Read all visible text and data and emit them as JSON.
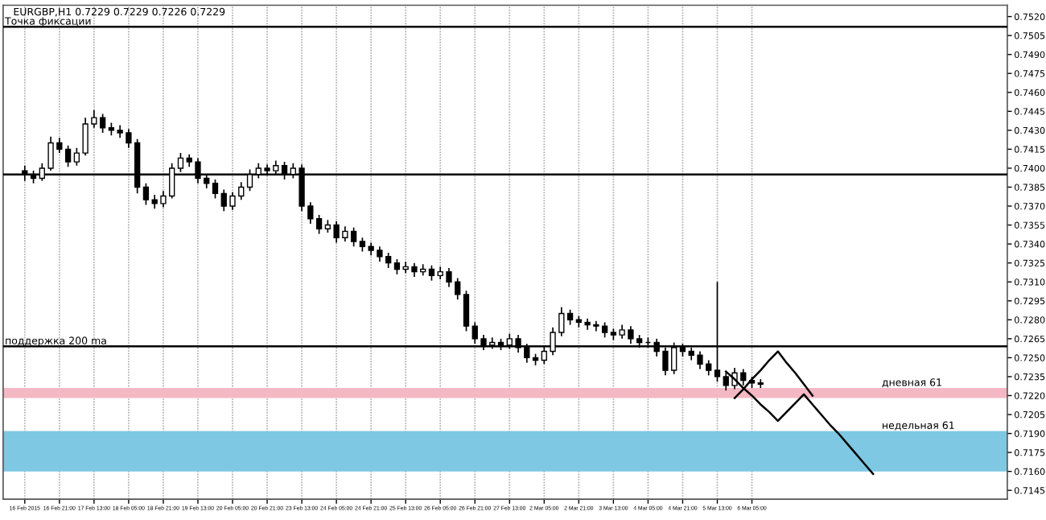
{
  "chart_data": {
    "type": "candlestick",
    "title": "EURGBP,H1 0.7229 0.7229 0.7226 0.7229",
    "categories": [
      "16 Feb 2015",
      null,
      null,
      null,
      "16 Feb 21:00",
      null,
      null,
      null,
      "17 Feb 13:00",
      null,
      null,
      null,
      "18 Feb 05:00",
      null,
      null,
      null,
      "18 Feb 21:00",
      null,
      null,
      null,
      "19 Feb 13:00",
      null,
      null,
      null,
      "20 Feb 05:00",
      null,
      null,
      null,
      "20 Feb 21:00",
      null,
      null,
      null,
      "23 Feb 13:00",
      null,
      null,
      null,
      "24 Feb 05:00",
      null,
      null,
      null,
      "24 Feb 21:00",
      null,
      null,
      null,
      "25 Feb 13:00",
      null,
      null,
      null,
      "26 Feb 05:00",
      null,
      null,
      null,
      "26 Feb 21:00",
      null,
      null,
      null,
      "27 Feb 13:00",
      null,
      null,
      null,
      "2 Mar 05:00",
      null,
      null,
      null,
      "2 Mar 21:00",
      null,
      null,
      null,
      "3 Mar 13:00",
      null,
      null,
      null,
      "4 Mar 05:00",
      null,
      null,
      null,
      "4 Mar 21:00",
      null,
      null,
      null,
      "5 Mar 13:00",
      null,
      null,
      null,
      "6 Mar 05:00",
      null,
      null,
      null,
      null,
      null,
      null,
      null,
      null,
      null,
      null,
      null,
      null,
      null,
      null,
      null,
      null,
      null,
      null,
      null,
      null,
      null,
      null,
      null,
      null,
      null,
      null,
      null,
      null,
      null
    ],
    "ohlc": [
      [
        0.7398,
        0.7402,
        0.739,
        0.7395
      ],
      [
        0.7395,
        0.7398,
        0.7388,
        0.7392
      ],
      [
        0.7392,
        0.7404,
        0.739,
        0.74
      ],
      [
        0.74,
        0.7425,
        0.7398,
        0.742
      ],
      [
        0.742,
        0.7424,
        0.7412,
        0.7415
      ],
      [
        0.7415,
        0.7418,
        0.7401,
        0.7405
      ],
      [
        0.7405,
        0.7416,
        0.7402,
        0.7412
      ],
      [
        0.7412,
        0.744,
        0.741,
        0.7435
      ],
      [
        0.7435,
        0.7446,
        0.7432,
        0.744
      ],
      [
        0.744,
        0.7443,
        0.7428,
        0.7432
      ],
      [
        0.7432,
        0.7436,
        0.7426,
        0.743
      ],
      [
        0.743,
        0.7434,
        0.7424,
        0.7428
      ],
      [
        0.7428,
        0.7431,
        0.7416,
        0.742
      ],
      [
        0.742,
        0.7423,
        0.738,
        0.7385
      ],
      [
        0.7385,
        0.7388,
        0.7371,
        0.7375
      ],
      [
        0.7375,
        0.7379,
        0.7368,
        0.7372
      ],
      [
        0.7372,
        0.7382,
        0.7369,
        0.7378
      ],
      [
        0.7378,
        0.7404,
        0.7376,
        0.74
      ],
      [
        0.74,
        0.7412,
        0.7397,
        0.7408
      ],
      [
        0.7408,
        0.7411,
        0.7401,
        0.7405
      ],
      [
        0.7405,
        0.7408,
        0.7388,
        0.7392
      ],
      [
        0.7392,
        0.7395,
        0.7384,
        0.7388
      ],
      [
        0.7388,
        0.7391,
        0.7376,
        0.738
      ],
      [
        0.738,
        0.7383,
        0.7366,
        0.737
      ],
      [
        0.737,
        0.7381,
        0.7367,
        0.7378
      ],
      [
        0.7378,
        0.7389,
        0.7375,
        0.7385
      ],
      [
        0.7385,
        0.7399,
        0.7382,
        0.7395
      ],
      [
        0.7395,
        0.7404,
        0.7392,
        0.74
      ],
      [
        0.74,
        0.7403,
        0.7394,
        0.7398
      ],
      [
        0.7398,
        0.7406,
        0.7395,
        0.7402
      ],
      [
        0.7402,
        0.7405,
        0.7391,
        0.7395
      ],
      [
        0.7395,
        0.7404,
        0.7392,
        0.74
      ],
      [
        0.74,
        0.7403,
        0.7366,
        0.737
      ],
      [
        0.737,
        0.7373,
        0.7356,
        0.736
      ],
      [
        0.736,
        0.7363,
        0.7348,
        0.7352
      ],
      [
        0.7352,
        0.7359,
        0.7349,
        0.7355
      ],
      [
        0.7355,
        0.7358,
        0.7341,
        0.7345
      ],
      [
        0.7345,
        0.7354,
        0.7342,
        0.735
      ],
      [
        0.735,
        0.7353,
        0.7338,
        0.7342
      ],
      [
        0.7342,
        0.7345,
        0.7334,
        0.7338
      ],
      [
        0.7338,
        0.7341,
        0.7331,
        0.7335
      ],
      [
        0.7335,
        0.7338,
        0.7326,
        0.733
      ],
      [
        0.733,
        0.7333,
        0.7321,
        0.7325
      ],
      [
        0.7325,
        0.7328,
        0.7316,
        0.732
      ],
      [
        0.732,
        0.7326,
        0.7317,
        0.7322
      ],
      [
        0.7322,
        0.7325,
        0.7314,
        0.7318
      ],
      [
        0.7318,
        0.7324,
        0.7315,
        0.732
      ],
      [
        0.732,
        0.7323,
        0.7311,
        0.7315
      ],
      [
        0.7315,
        0.7322,
        0.7312,
        0.7318
      ],
      [
        0.7318,
        0.7321,
        0.7306,
        0.731
      ],
      [
        0.731,
        0.7313,
        0.7296,
        0.73
      ],
      [
        0.73,
        0.7303,
        0.7271,
        0.7275
      ],
      [
        0.7275,
        0.7278,
        0.7261,
        0.7265
      ],
      [
        0.7265,
        0.7268,
        0.7256,
        0.726
      ],
      [
        0.726,
        0.7266,
        0.7257,
        0.7262
      ],
      [
        0.7262,
        0.7265,
        0.7256,
        0.726
      ],
      [
        0.726,
        0.7269,
        0.7257,
        0.7265
      ],
      [
        0.7265,
        0.7268,
        0.7254,
        0.7258
      ],
      [
        0.7258,
        0.7261,
        0.7246,
        0.725
      ],
      [
        0.725,
        0.7253,
        0.7244,
        0.7248
      ],
      [
        0.7248,
        0.7259,
        0.7245,
        0.7255
      ],
      [
        0.7255,
        0.7274,
        0.7252,
        0.727
      ],
      [
        0.727,
        0.729,
        0.7267,
        0.7285
      ],
      [
        0.7285,
        0.7288,
        0.7276,
        0.728
      ],
      [
        0.728,
        0.7283,
        0.7274,
        0.7278
      ],
      [
        0.7278,
        0.7281,
        0.7272,
        0.7276
      ],
      [
        0.7276,
        0.7279,
        0.7271,
        0.7275
      ],
      [
        0.7275,
        0.7278,
        0.7266,
        0.727
      ],
      [
        0.727,
        0.7273,
        0.7264,
        0.7268
      ],
      [
        0.7268,
        0.7276,
        0.7265,
        0.7272
      ],
      [
        0.7272,
        0.7275,
        0.7261,
        0.7265
      ],
      [
        0.7265,
        0.7268,
        0.7258,
        0.7262
      ],
      [
        0.7262,
        0.7266,
        0.7258,
        0.7262
      ],
      [
        0.7262,
        0.7265,
        0.7251,
        0.7255
      ],
      [
        0.7255,
        0.7258,
        0.7236,
        0.724
      ],
      [
        0.724,
        0.7262,
        0.7237,
        0.7258
      ],
      [
        0.7258,
        0.7261,
        0.7251,
        0.7255
      ],
      [
        0.7255,
        0.7258,
        0.7248,
        0.7252
      ],
      [
        0.7252,
        0.7255,
        0.7241,
        0.7245
      ],
      [
        0.7245,
        0.7248,
        0.7236,
        0.724
      ],
      [
        0.724,
        0.731,
        0.7231,
        0.7235
      ],
      [
        0.7235,
        0.7238,
        0.7224,
        0.7228
      ],
      [
        0.7228,
        0.7242,
        0.7225,
        0.7238
      ],
      [
        0.7238,
        0.7241,
        0.7228,
        0.7232
      ],
      [
        0.7232,
        0.7235,
        0.7226,
        0.723
      ],
      [
        0.723,
        0.7233,
        0.7226,
        0.7229
      ],
      null,
      null,
      null,
      null,
      null,
      null,
      null,
      null,
      null,
      null,
      null,
      null,
      null,
      null,
      null,
      null,
      null,
      null,
      null,
      null,
      null,
      null,
      null,
      null,
      null,
      null,
      null,
      null
    ],
    "series": [
      {
        "type": "line",
        "color": "#000000",
        "values": [
          null,
          null,
          null,
          null,
          null,
          null,
          null,
          null,
          null,
          null,
          null,
          null,
          null,
          null,
          null,
          null,
          null,
          null,
          null,
          null,
          null,
          null,
          null,
          null,
          null,
          null,
          null,
          null,
          null,
          null,
          null,
          null,
          null,
          null,
          null,
          null,
          null,
          null,
          null,
          null,
          null,
          null,
          null,
          null,
          null,
          null,
          null,
          null,
          null,
          null,
          null,
          null,
          null,
          null,
          null,
          null,
          null,
          null,
          null,
          null,
          null,
          null,
          null,
          null,
          null,
          null,
          null,
          null,
          null,
          null,
          null,
          null,
          null,
          null,
          null,
          null,
          null,
          null,
          null,
          null,
          null,
          null,
          0.7218,
          0.7225,
          0.7233,
          0.724,
          0.7248,
          0.7255,
          0.7246,
          0.7238,
          0.7229,
          0.722,
          null,
          null,
          null,
          null,
          null,
          null,
          null,
          null,
          null,
          null,
          null,
          null,
          null,
          null,
          null,
          null,
          null,
          null,
          null,
          null,
          null,
          null
        ]
      },
      {
        "type": "line",
        "color": "#000000",
        "values": [
          null,
          null,
          null,
          null,
          null,
          null,
          null,
          null,
          null,
          null,
          null,
          null,
          null,
          null,
          null,
          null,
          null,
          null,
          null,
          null,
          null,
          null,
          null,
          null,
          null,
          null,
          null,
          null,
          null,
          null,
          null,
          null,
          null,
          null,
          null,
          null,
          null,
          null,
          null,
          null,
          null,
          null,
          null,
          null,
          null,
          null,
          null,
          null,
          null,
          null,
          null,
          null,
          null,
          null,
          null,
          null,
          null,
          null,
          null,
          null,
          null,
          null,
          null,
          null,
          null,
          null,
          null,
          null,
          null,
          null,
          null,
          null,
          null,
          null,
          null,
          null,
          null,
          null,
          null,
          null,
          null,
          0.7239,
          0.7233,
          0.7226,
          0.722,
          0.7213,
          0.7207,
          0.72,
          0.7207,
          0.7214,
          0.7221,
          0.7213,
          0.7205,
          0.7197,
          0.719,
          0.7182,
          0.7174,
          0.7166,
          0.7158,
          null,
          null,
          null,
          null,
          null,
          null,
          null,
          null,
          null,
          null,
          null,
          null,
          null,
          null,
          null
        ]
      }
    ],
    "ref_lines": [
      {
        "axis": "y",
        "value": 0.7512,
        "label": "Точка фиксации",
        "color": "#000000"
      },
      {
        "axis": "y",
        "value": 0.7395,
        "label": null,
        "color": "#000000"
      },
      {
        "axis": "y",
        "value": 0.7259,
        "label": "поддержка 200 ma",
        "color": "#000000"
      }
    ],
    "bands": [
      {
        "axis": "y",
        "from": 0.7218,
        "to": 0.7226,
        "label": "дневная 61",
        "color": "#f4b8c4"
      },
      {
        "axis": "y",
        "from": 0.716,
        "to": 0.7192,
        "label": "недельная 61",
        "color": "#7ec8e3"
      }
    ],
    "ylim": [
      0.7138,
      0.7529
    ],
    "yticks": [
      {
        "value": 0.7145,
        "label": "0.7145"
      },
      {
        "value": 0.716,
        "label": "0.7160"
      },
      {
        "value": 0.7175,
        "label": "0.7175"
      },
      {
        "value": 0.719,
        "label": "0.7190"
      },
      {
        "value": 0.7205,
        "label": "0.7205"
      },
      {
        "value": 0.722,
        "label": "0.7220"
      },
      {
        "value": 0.7235,
        "label": "0.7235"
      },
      {
        "value": 0.725,
        "label": "0.7250"
      },
      {
        "value": 0.7265,
        "label": "0.7265"
      },
      {
        "value": 0.728,
        "label": "0.7280"
      },
      {
        "value": 0.7295,
        "label": "0.7295"
      },
      {
        "value": 0.731,
        "label": "0.7310"
      },
      {
        "value": 0.7325,
        "label": "0.7325"
      },
      {
        "value": 0.734,
        "label": "0.7340"
      },
      {
        "value": 0.7355,
        "label": "0.7355"
      },
      {
        "value": 0.737,
        "label": "0.7370"
      },
      {
        "value": 0.7385,
        "label": "0.7385"
      },
      {
        "value": 0.74,
        "label": "0.7400"
      },
      {
        "value": 0.7415,
        "label": "0.7415"
      },
      {
        "value": 0.743,
        "label": "0.7430"
      },
      {
        "value": 0.7445,
        "label": "0.7445"
      },
      {
        "value": 0.746,
        "label": "0.7460"
      },
      {
        "value": 0.7475,
        "label": "0.7475"
      },
      {
        "value": 0.749,
        "label": "0.7490"
      },
      {
        "value": 0.7505,
        "label": "0.7505"
      },
      {
        "value": 0.752,
        "label": "0.7520"
      }
    ],
    "grid": "x"
  }
}
